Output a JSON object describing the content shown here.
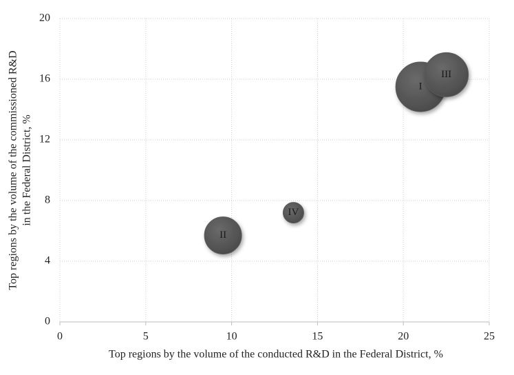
{
  "chart_data": {
    "type": "bubble",
    "x_label": "Top regions by the volume of the conducted R&D in the Federal District, %",
    "y_label": [
      "Top regions by the volume of the commissioned R&D",
      "in the Federal District, %"
    ],
    "labels": [
      "I",
      "II",
      "III",
      "IV"
    ],
    "x": [
      21,
      9.5,
      22.5,
      13.6
    ],
    "values": [
      15.5,
      5.7,
      16.3,
      7.2
    ],
    "sizes": [
      144,
      81,
      114,
      25
    ],
    "color": "#5a5a5a",
    "xlim": [
      0,
      25
    ],
    "xticks": [
      0,
      5,
      10,
      15,
      20,
      25
    ],
    "ylim": [
      0,
      20
    ],
    "yticks": [
      0,
      4,
      8,
      12,
      16,
      20
    ],
    "grid": true
  }
}
